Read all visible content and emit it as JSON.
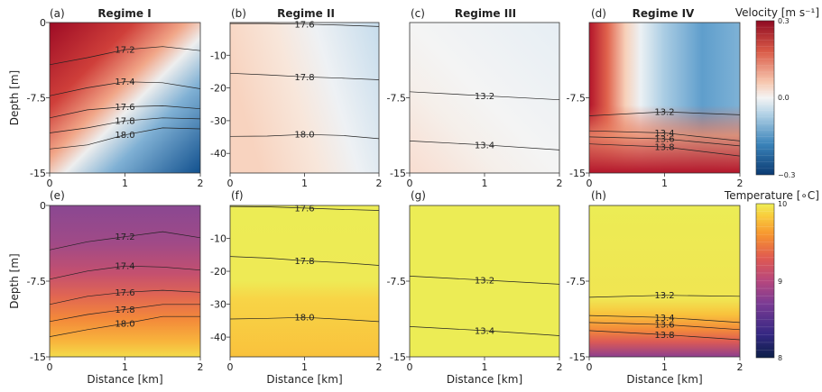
{
  "chart_data": {
    "type": "heatmap",
    "layout": "2 rows x 4 columns of filled-contour panels with shared colorbars per row",
    "regimes": [
      "Regime I",
      "Regime II",
      "Regime III",
      "Regime IV"
    ],
    "rows": [
      {
        "field": "velocity",
        "colorbar_label": "Velocity [$m\\,s^{-1}$]",
        "colorbar_display": "Velocity [m s⁻¹]",
        "colorbar_ticks": [
          "0.3",
          "0.0",
          "−0.3"
        ],
        "colorbar_range": [
          -0.3,
          0.3
        ],
        "colormap": "red-white-blue diverging"
      },
      {
        "field": "temperature",
        "colorbar_label": "Temperature [$^\\circ C$]",
        "colorbar_display": "Temperature [∘C]",
        "colorbar_ticks": [
          "10",
          "9",
          "8"
        ],
        "colorbar_range": [
          8,
          10
        ],
        "colormap": "plasma-like (yellow high, navy low)"
      }
    ],
    "xlabel": "Distance [km]",
    "x_ticks": [
      "0",
      "1",
      "2"
    ],
    "xlim": [
      0,
      2
    ],
    "panels": [
      {
        "id": "a",
        "label": "(a)",
        "title": "Regime I",
        "field": "velocity",
        "ylabel": "Depth [m]",
        "y_ticks": [
          "0",
          "-7.5",
          "-15"
        ],
        "ylim": [
          -15,
          0
        ],
        "contours": [
          {
            "level": "17.2",
            "x": [
              0,
              0.5,
              1,
              1.5,
              2
            ],
            "y": [
              -4.2,
              -3.5,
              -2.7,
              -2.4,
              -2.8
            ]
          },
          {
            "level": "17.4",
            "x": [
              0,
              0.5,
              1,
              1.5,
              2
            ],
            "y": [
              -7.3,
              -6.5,
              -5.9,
              -6.0,
              -6.6
            ]
          },
          {
            "level": "17.6",
            "x": [
              0,
              0.5,
              1,
              1.5,
              2
            ],
            "y": [
              -9.5,
              -8.7,
              -8.4,
              -8.3,
              -8.6
            ]
          },
          {
            "level": "17.8",
            "x": [
              0,
              0.5,
              1,
              1.5,
              2
            ],
            "y": [
              -11.0,
              -10.5,
              -9.8,
              -9.5,
              -9.6
            ]
          },
          {
            "level": "18.0",
            "x": [
              0,
              0.5,
              1,
              1.5,
              2
            ],
            "y": [
              -12.6,
              -12.2,
              -11.2,
              -10.5,
              -10.6
            ]
          }
        ]
      },
      {
        "id": "b",
        "label": "(b)",
        "title": "Regime II",
        "field": "velocity",
        "ylabel": "",
        "y_ticks": [
          "-10",
          "-20",
          "-30",
          "-40"
        ],
        "ylim": [
          -46,
          0
        ],
        "contours": [
          {
            "level": "17.6",
            "x": [
              0,
              0.5,
              1,
              1.5,
              2
            ],
            "y": [
              -0.3,
              -0.3,
              -0.5,
              -0.8,
              -1.2
            ]
          },
          {
            "level": "17.8",
            "x": [
              0,
              0.5,
              1,
              1.5,
              2
            ],
            "y": [
              -15.5,
              -16.0,
              -16.6,
              -17.0,
              -17.5
            ]
          },
          {
            "level": "18.0",
            "x": [
              0,
              0.5,
              1,
              1.5,
              2
            ],
            "y": [
              -34.8,
              -34.7,
              -34.2,
              -34.5,
              -35.5
            ]
          }
        ]
      },
      {
        "id": "c",
        "label": "(c)",
        "title": "Regime III",
        "field": "velocity",
        "ylabel": "",
        "y_ticks": [
          "-7.5",
          "-15"
        ],
        "ylim": [
          -15,
          0
        ],
        "contours": [
          {
            "level": "13.2",
            "x": [
              0,
              1,
              2
            ],
            "y": [
              -6.9,
              -7.3,
              -7.7
            ]
          },
          {
            "level": "13.4",
            "x": [
              0,
              1,
              2
            ],
            "y": [
              -11.8,
              -12.2,
              -12.7
            ]
          }
        ]
      },
      {
        "id": "d",
        "label": "(d)",
        "title": "Regime IV",
        "field": "velocity",
        "ylabel": "",
        "y_ticks": [
          "-7.5",
          "-15"
        ],
        "ylim": [
          -15,
          0
        ],
        "contours": [
          {
            "level": "13.2",
            "x": [
              0,
              1,
              2
            ],
            "y": [
              -9.3,
              -8.9,
              -9.2
            ]
          },
          {
            "level": "13.4",
            "x": [
              0,
              1,
              2
            ],
            "y": [
              -10.8,
              -11.0,
              -11.8
            ]
          },
          {
            "level": "13.6",
            "x": [
              0,
              1,
              2
            ],
            "y": [
              -11.4,
              -11.6,
              -12.3
            ]
          },
          {
            "level": "13.8",
            "x": [
              0,
              1,
              2
            ],
            "y": [
              -12.1,
              -12.4,
              -13.3
            ]
          }
        ]
      },
      {
        "id": "e",
        "label": "(e)",
        "title": "",
        "field": "temperature",
        "ylabel": "Depth [m]",
        "y_ticks": [
          "0",
          "-7.5",
          "-15"
        ],
        "ylim": [
          -15,
          0
        ],
        "contours": [
          {
            "level": "17.2",
            "x": [
              0,
              0.5,
              1,
              1.5,
              2
            ],
            "y": [
              -4.4,
              -3.6,
              -3.1,
              -2.6,
              -3.2
            ]
          },
          {
            "level": "17.4",
            "x": [
              0,
              0.5,
              1,
              1.5,
              2
            ],
            "y": [
              -7.3,
              -6.5,
              -6.0,
              -6.1,
              -6.4
            ]
          },
          {
            "level": "17.6",
            "x": [
              0,
              0.5,
              1,
              1.5,
              2
            ],
            "y": [
              -9.8,
              -9.0,
              -8.6,
              -8.4,
              -8.6
            ]
          },
          {
            "level": "17.8",
            "x": [
              0,
              0.5,
              1,
              1.5,
              2
            ],
            "y": [
              -11.5,
              -10.8,
              -10.3,
              -9.8,
              -9.8
            ]
          },
          {
            "level": "18.0",
            "x": [
              0,
              0.5,
              1,
              1.5,
              2
            ],
            "y": [
              -13.0,
              -12.3,
              -11.7,
              -11.0,
              -11.0
            ]
          }
        ]
      },
      {
        "id": "f",
        "label": "(f)",
        "title": "",
        "field": "temperature",
        "ylabel": "",
        "y_ticks": [
          "-10",
          "-20",
          "-30",
          "-40"
        ],
        "ylim": [
          -46,
          0
        ],
        "contours": [
          {
            "level": "17.6",
            "x": [
              0,
              0.5,
              1,
              1.5,
              2
            ],
            "y": [
              -0.3,
              -0.4,
              -0.8,
              -1.2,
              -1.5
            ]
          },
          {
            "level": "17.8",
            "x": [
              0,
              0.5,
              1,
              1.5,
              2
            ],
            "y": [
              -15.5,
              -16.0,
              -16.8,
              -17.4,
              -18.2
            ]
          },
          {
            "level": "18.0",
            "x": [
              0,
              0.5,
              1,
              1.5,
              2
            ],
            "y": [
              -34.5,
              -34.3,
              -34.0,
              -34.6,
              -35.3
            ]
          }
        ]
      },
      {
        "id": "g",
        "label": "(g)",
        "title": "",
        "field": "temperature",
        "ylabel": "",
        "y_ticks": [
          "-7.5",
          "-15"
        ],
        "ylim": [
          -15,
          0
        ],
        "contours": [
          {
            "level": "13.2",
            "x": [
              0,
              1,
              2
            ],
            "y": [
              -7.0,
              -7.4,
              -7.8
            ]
          },
          {
            "level": "13.4",
            "x": [
              0,
              1,
              2
            ],
            "y": [
              -12.0,
              -12.4,
              -12.9
            ]
          }
        ]
      },
      {
        "id": "h",
        "label": "(h)",
        "title": "",
        "field": "temperature",
        "ylabel": "",
        "y_ticks": [
          "-7.5",
          "-15"
        ],
        "ylim": [
          -15,
          0
        ],
        "contours": [
          {
            "level": "13.2",
            "x": [
              0,
              1,
              2
            ],
            "y": [
              -9.1,
              -8.9,
              -9.0
            ]
          },
          {
            "level": "13.4",
            "x": [
              0,
              1,
              2
            ],
            "y": [
              -10.9,
              -11.1,
              -11.6
            ]
          },
          {
            "level": "13.6",
            "x": [
              0,
              1,
              2
            ],
            "y": [
              -11.6,
              -11.8,
              -12.3
            ]
          },
          {
            "level": "13.8",
            "x": [
              0,
              1,
              2
            ],
            "y": [
              -12.4,
              -12.8,
              -13.3
            ]
          }
        ]
      }
    ],
    "velocity_fields": {
      "a": "strong positive (~0.3) near surface/left, shallowing toward right; strong negative (~-0.3) at depth on the right",
      "b": "weak positive (~0.05) left half, weak negative (~-0.05) right half",
      "c": "near zero; weak positive (~0.03) at bottom-left, weak negative at top-right",
      "d": "strong positive (~0.3) along left edge and bottom, moderate negative (~-0.15) in the interior right"
    },
    "temperature_fields": {
      "e": "~9.0 at surface increasing to ~9.9 at 15 m",
      "f": "~10 above 25 m, ~9.8 below",
      "g": "~10 uniformly",
      "h": "~10 above 10 m, decreasing to ~9.0 at 15 m"
    }
  }
}
